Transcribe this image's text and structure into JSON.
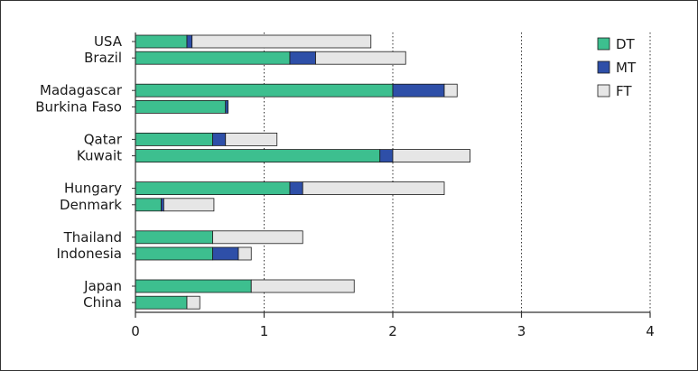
{
  "chart_data": {
    "type": "bar",
    "orientation": "horizontal",
    "stacked": true,
    "categories": [
      "USA",
      "Brazil",
      "Madagascar",
      "Burkina Faso",
      "Qatar",
      "Kuwait",
      "Hungary",
      "Denmark",
      "Thailand",
      "Indonesia",
      "Japan",
      "China"
    ],
    "groups": [
      [
        "USA",
        "Brazil"
      ],
      [
        "Madagascar",
        "Burkina Faso"
      ],
      [
        "Qatar",
        "Kuwait"
      ],
      [
        "Hungary",
        "Denmark"
      ],
      [
        "Thailand",
        "Indonesia"
      ],
      [
        "Japan",
        "China"
      ]
    ],
    "series": [
      {
        "name": "DT",
        "color": "#3dbf8f",
        "values": [
          0.4,
          1.2,
          2.0,
          0.7,
          0.6,
          1.9,
          1.2,
          0.2,
          0.6,
          0.6,
          0.9,
          0.4
        ]
      },
      {
        "name": "MT",
        "color": "#2e4fa8",
        "values": [
          0.04,
          0.2,
          0.4,
          0.02,
          0.1,
          0.1,
          0.1,
          0.02,
          0.0,
          0.2,
          0.0,
          0.0
        ]
      },
      {
        "name": "FT",
        "color": "#e6e6e6",
        "values": [
          1.39,
          0.7,
          0.1,
          0.0,
          0.4,
          0.6,
          1.1,
          0.39,
          0.7,
          0.1,
          0.8,
          0.1
        ]
      }
    ],
    "xlim": [
      0,
      4
    ],
    "xticks": [
      0,
      1,
      2,
      3,
      4
    ],
    "xtick_labels": [
      "0",
      "1",
      "2",
      "3",
      "4"
    ],
    "vertical_gridlines": "dotted",
    "legend_position": "top-right"
  }
}
